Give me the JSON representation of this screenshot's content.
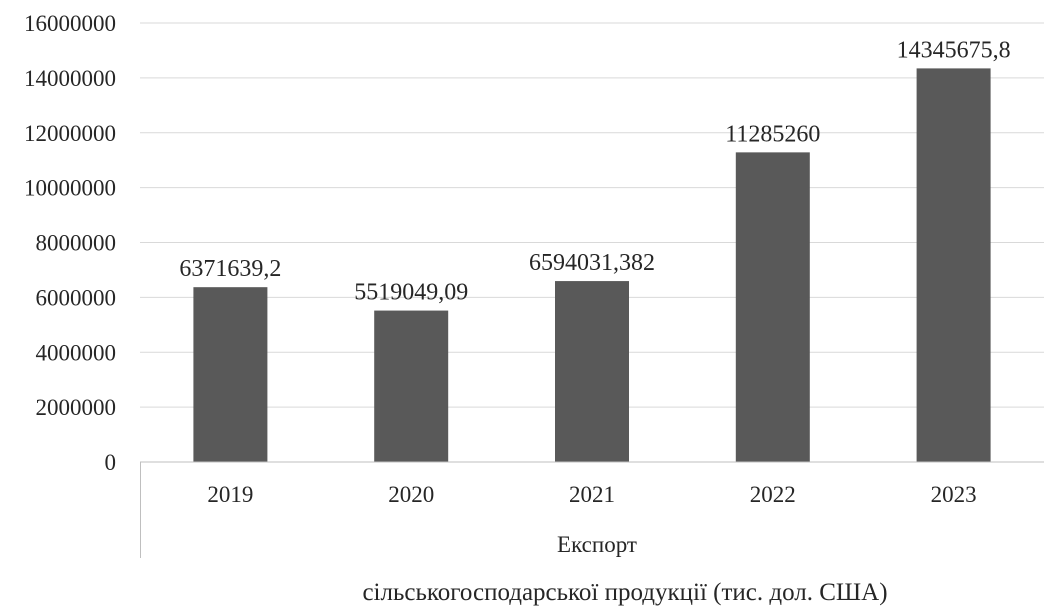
{
  "chart_data": {
    "type": "bar",
    "categories": [
      "2019",
      "2020",
      "2021",
      "2022",
      "2023"
    ],
    "values": [
      6371639.2,
      5519049.09,
      6594031.382,
      11285260,
      14345675.8
    ],
    "data_labels": [
      "6371639,2",
      "5519049,09",
      "6594031,382",
      "11285260",
      "14345675,8"
    ],
    "y_ticks": [
      "0",
      "2000000",
      "4000000",
      "6000000",
      "8000000",
      "10000000",
      "12000000",
      "14000000",
      "16000000"
    ],
    "ylim": [
      0,
      16000000
    ],
    "group_label": "Експорт",
    "caption": "сільськогосподарської продукції (тис. дол. США)",
    "bar_color": "#595959",
    "grid": true,
    "legend": "none"
  }
}
